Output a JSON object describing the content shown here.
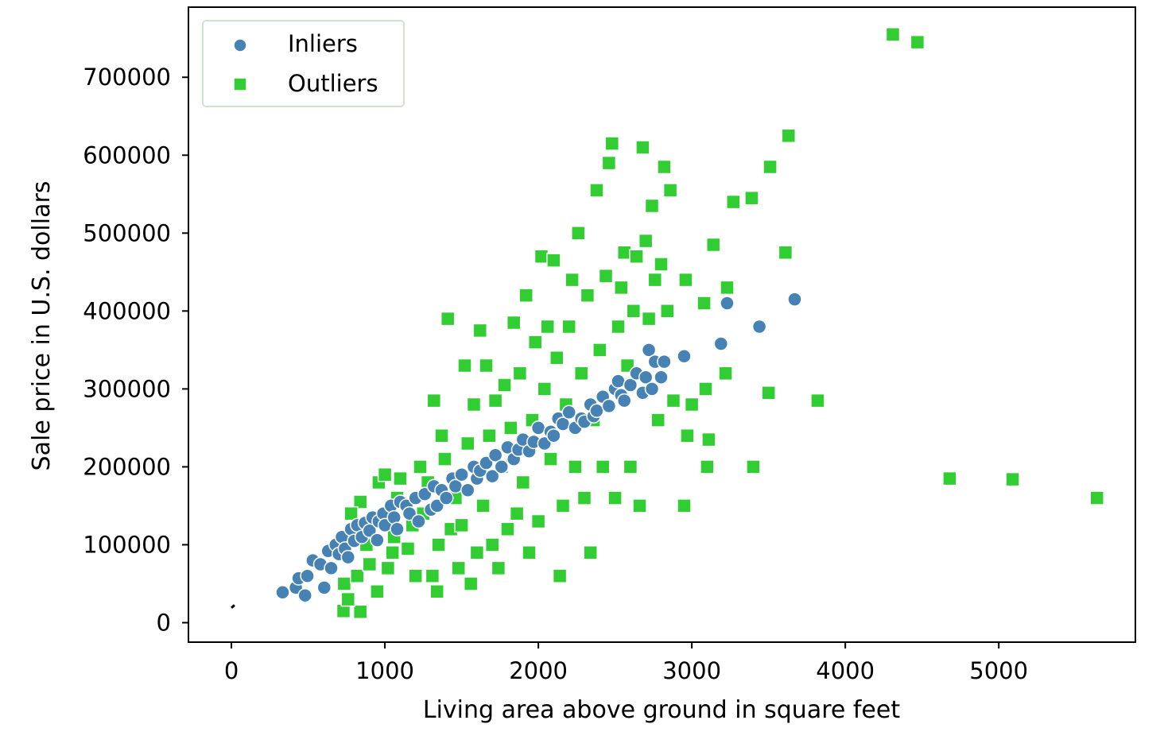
{
  "colors": {
    "inlier": "#4682b4",
    "outlier": "#32cd32",
    "fit_line": "#000000",
    "legend_border": "#cfe3cf"
  },
  "chart_data": {
    "type": "scatter",
    "xlabel": "Living area above ground in square feet",
    "ylabel": "Sale price in U.S. dollars",
    "xlim": [
      -280,
      5890
    ],
    "ylim": [
      -25000,
      790000
    ],
    "xticks": [
      0,
      1000,
      2000,
      3000,
      4000,
      5000
    ],
    "yticks": [
      0,
      100000,
      200000,
      300000,
      400000,
      500000,
      600000,
      700000
    ],
    "grid": false,
    "legend": {
      "position": "top-left",
      "entries": [
        "Inliers",
        "Outliers"
      ]
    },
    "fit_line": {
      "x": [
        0,
        20
      ],
      "y": [
        19000,
        22500
      ]
    },
    "series": [
      {
        "name": "Inliers",
        "marker": "circle",
        "color": "#4682b4",
        "points": [
          [
            334,
            39000
          ],
          [
            420,
            45000
          ],
          [
            438,
            57000
          ],
          [
            480,
            35000
          ],
          [
            495,
            60000
          ],
          [
            530,
            80000
          ],
          [
            580,
            75000
          ],
          [
            605,
            45000
          ],
          [
            630,
            92000
          ],
          [
            650,
            70000
          ],
          [
            680,
            100000
          ],
          [
            700,
            88000
          ],
          [
            720,
            110000
          ],
          [
            740,
            95000
          ],
          [
            760,
            84000
          ],
          [
            780,
            120000
          ],
          [
            800,
            105000
          ],
          [
            820,
            125000
          ],
          [
            850,
            110000
          ],
          [
            870,
            128000
          ],
          [
            900,
            118000
          ],
          [
            920,
            135000
          ],
          [
            950,
            106000
          ],
          [
            960,
            130000
          ],
          [
            990,
            140000
          ],
          [
            1000,
            125000
          ],
          [
            1040,
            150000
          ],
          [
            1060,
            135000
          ],
          [
            1080,
            120000
          ],
          [
            1100,
            155000
          ],
          [
            1140,
            150000
          ],
          [
            1160,
            140000
          ],
          [
            1200,
            160000
          ],
          [
            1220,
            130000
          ],
          [
            1260,
            165000
          ],
          [
            1300,
            145000
          ],
          [
            1320,
            175000
          ],
          [
            1340,
            150000
          ],
          [
            1370,
            170000
          ],
          [
            1400,
            160000
          ],
          [
            1440,
            185000
          ],
          [
            1460,
            175000
          ],
          [
            1500,
            190000
          ],
          [
            1540,
            170000
          ],
          [
            1580,
            200000
          ],
          [
            1600,
            185000
          ],
          [
            1620,
            195000
          ],
          [
            1660,
            205000
          ],
          [
            1700,
            188000
          ],
          [
            1720,
            215000
          ],
          [
            1760,
            200000
          ],
          [
            1800,
            225000
          ],
          [
            1840,
            210000
          ],
          [
            1870,
            222000
          ],
          [
            1900,
            235000
          ],
          [
            1940,
            220000
          ],
          [
            1970,
            232000
          ],
          [
            2000,
            250000
          ],
          [
            2040,
            230000
          ],
          [
            2080,
            245000
          ],
          [
            2100,
            240000
          ],
          [
            2130,
            262000
          ],
          [
            2160,
            255000
          ],
          [
            2200,
            270000
          ],
          [
            2240,
            250000
          ],
          [
            2280,
            262000
          ],
          [
            2300,
            258000
          ],
          [
            2340,
            280000
          ],
          [
            2360,
            265000
          ],
          [
            2380,
            272000
          ],
          [
            2420,
            290000
          ],
          [
            2460,
            278000
          ],
          [
            2500,
            300000
          ],
          [
            2520,
            310000
          ],
          [
            2540,
            292000
          ],
          [
            2560,
            285000
          ],
          [
            2600,
            305000
          ],
          [
            2640,
            320000
          ],
          [
            2680,
            295000
          ],
          [
            2700,
            315000
          ],
          [
            2720,
            350000
          ],
          [
            2740,
            300000
          ],
          [
            2760,
            335000
          ],
          [
            2800,
            315000
          ],
          [
            2820,
            335000
          ],
          [
            2950,
            342000
          ],
          [
            3190,
            358000
          ],
          [
            3230,
            410000
          ],
          [
            3440,
            380000
          ],
          [
            3670,
            415000
          ]
        ]
      },
      {
        "name": "Outliers",
        "marker": "square",
        "color": "#32cd32",
        "points": [
          [
            730,
            15000
          ],
          [
            840,
            14000
          ],
          [
            735,
            50000
          ],
          [
            760,
            30000
          ],
          [
            820,
            60000
          ],
          [
            840,
            155000
          ],
          [
            780,
            140000
          ],
          [
            880,
            100000
          ],
          [
            900,
            75000
          ],
          [
            950,
            40000
          ],
          [
            960,
            180000
          ],
          [
            980,
            130000
          ],
          [
            1000,
            190000
          ],
          [
            1020,
            70000
          ],
          [
            1050,
            90000
          ],
          [
            1060,
            110000
          ],
          [
            1080,
            160000
          ],
          [
            1100,
            185000
          ],
          [
            1150,
            95000
          ],
          [
            1180,
            125000
          ],
          [
            1200,
            60000
          ],
          [
            1230,
            200000
          ],
          [
            1250,
            140000
          ],
          [
            1280,
            180000
          ],
          [
            1310,
            60000
          ],
          [
            1320,
            285000
          ],
          [
            1340,
            40000
          ],
          [
            1350,
            100000
          ],
          [
            1370,
            240000
          ],
          [
            1390,
            210000
          ],
          [
            1410,
            390000
          ],
          [
            1430,
            120000
          ],
          [
            1460,
            160000
          ],
          [
            1480,
            70000
          ],
          [
            1500,
            125000
          ],
          [
            1520,
            330000
          ],
          [
            1540,
            230000
          ],
          [
            1560,
            50000
          ],
          [
            1580,
            280000
          ],
          [
            1600,
            90000
          ],
          [
            1620,
            375000
          ],
          [
            1640,
            150000
          ],
          [
            1660,
            330000
          ],
          [
            1680,
            240000
          ],
          [
            1700,
            100000
          ],
          [
            1720,
            285000
          ],
          [
            1740,
            70000
          ],
          [
            1760,
            200000
          ],
          [
            1780,
            305000
          ],
          [
            1800,
            120000
          ],
          [
            1820,
            250000
          ],
          [
            1840,
            385000
          ],
          [
            1860,
            140000
          ],
          [
            1880,
            320000
          ],
          [
            1900,
            180000
          ],
          [
            1920,
            420000
          ],
          [
            1940,
            90000
          ],
          [
            1960,
            260000
          ],
          [
            1980,
            360000
          ],
          [
            2000,
            130000
          ],
          [
            2020,
            470000
          ],
          [
            2040,
            300000
          ],
          [
            2060,
            380000
          ],
          [
            2080,
            210000
          ],
          [
            2100,
            465000
          ],
          [
            2120,
            340000
          ],
          [
            2140,
            60000
          ],
          [
            2160,
            150000
          ],
          [
            2180,
            280000
          ],
          [
            2200,
            380000
          ],
          [
            2220,
            440000
          ],
          [
            2240,
            200000
          ],
          [
            2260,
            500000
          ],
          [
            2280,
            320000
          ],
          [
            2300,
            160000
          ],
          [
            2320,
            420000
          ],
          [
            2340,
            90000
          ],
          [
            2360,
            260000
          ],
          [
            2380,
            555000
          ],
          [
            2400,
            350000
          ],
          [
            2420,
            200000
          ],
          [
            2440,
            445000
          ],
          [
            2460,
            590000
          ],
          [
            2480,
            615000
          ],
          [
            2500,
            160000
          ],
          [
            2520,
            380000
          ],
          [
            2540,
            430000
          ],
          [
            2560,
            475000
          ],
          [
            2580,
            330000
          ],
          [
            2600,
            200000
          ],
          [
            2620,
            400000
          ],
          [
            2640,
            470000
          ],
          [
            2660,
            150000
          ],
          [
            2680,
            610000
          ],
          [
            2700,
            490000
          ],
          [
            2720,
            390000
          ],
          [
            2740,
            535000
          ],
          [
            2760,
            440000
          ],
          [
            2780,
            260000
          ],
          [
            2800,
            460000
          ],
          [
            2820,
            585000
          ],
          [
            2840,
            400000
          ],
          [
            2860,
            555000
          ],
          [
            2880,
            285000
          ],
          [
            2950,
            150000
          ],
          [
            2960,
            440000
          ],
          [
            2970,
            240000
          ],
          [
            3000,
            280000
          ],
          [
            3080,
            410000
          ],
          [
            3090,
            300000
          ],
          [
            3100,
            200000
          ],
          [
            3110,
            235000
          ],
          [
            3140,
            485000
          ],
          [
            3220,
            320000
          ],
          [
            3230,
            430000
          ],
          [
            3270,
            540000
          ],
          [
            3390,
            545000
          ],
          [
            3400,
            200000
          ],
          [
            3500,
            295000
          ],
          [
            3510,
            585000
          ],
          [
            3610,
            475000
          ],
          [
            3630,
            625000
          ],
          [
            3820,
            285000
          ],
          [
            4310,
            755000
          ],
          [
            4470,
            745000
          ],
          [
            4680,
            185000
          ],
          [
            5090,
            184000
          ],
          [
            5640,
            160000
          ]
        ]
      }
    ]
  }
}
